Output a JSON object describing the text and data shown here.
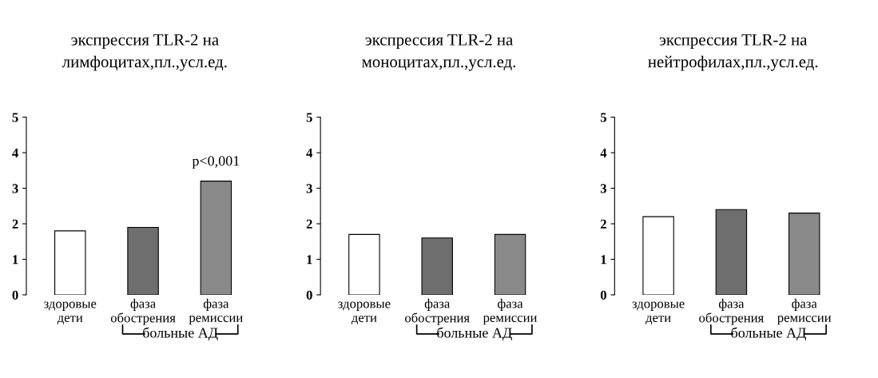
{
  "chart_data": [
    {
      "type": "bar",
      "title": "экспрессия TLR-2 на\nлимфоцитах,пл.,усл.ед.",
      "categories": [
        "здоровые\nдети",
        "фаза\nобострения",
        "фаза\nремиссии"
      ],
      "values": [
        1.8,
        1.9,
        3.2
      ],
      "colors": [
        "#ffffff",
        "#6e6e6e",
        "#8a8a8a"
      ],
      "ylim": [
        0,
        5
      ],
      "yticks": [
        0,
        1,
        2,
        3,
        4,
        5
      ],
      "grid": false,
      "annotations": [
        "p<0,001",
        "больные АД"
      ]
    },
    {
      "type": "bar",
      "title": "экспрессия TLR-2 на\nмоноцитах,пл.,усл.ед.",
      "categories": [
        "здоровые\nдети",
        "фаза\nобострения",
        "фаза\nремиссии"
      ],
      "values": [
        1.7,
        1.6,
        1.7
      ],
      "colors": [
        "#ffffff",
        "#6e6e6e",
        "#8a8a8a"
      ],
      "ylim": [
        0,
        5
      ],
      "yticks": [
        0,
        1,
        2,
        3,
        4,
        5
      ],
      "grid": false,
      "annotations": [
        "больные АД"
      ]
    },
    {
      "type": "bar",
      "title": "экспрессия TLR-2 на\nнейтрофилах,пл.,усл.ед.",
      "categories": [
        "здоровые\nдети",
        "фаза\nобострения",
        "фаза\nремиссии"
      ],
      "values": [
        2.2,
        2.4,
        2.3
      ],
      "colors": [
        "#ffffff",
        "#6e6e6e",
        "#8a8a8a"
      ],
      "ylim": [
        0,
        5
      ],
      "yticks": [
        0,
        1,
        2,
        3,
        4,
        5
      ],
      "grid": false,
      "annotations": [
        "больные АД"
      ]
    }
  ]
}
